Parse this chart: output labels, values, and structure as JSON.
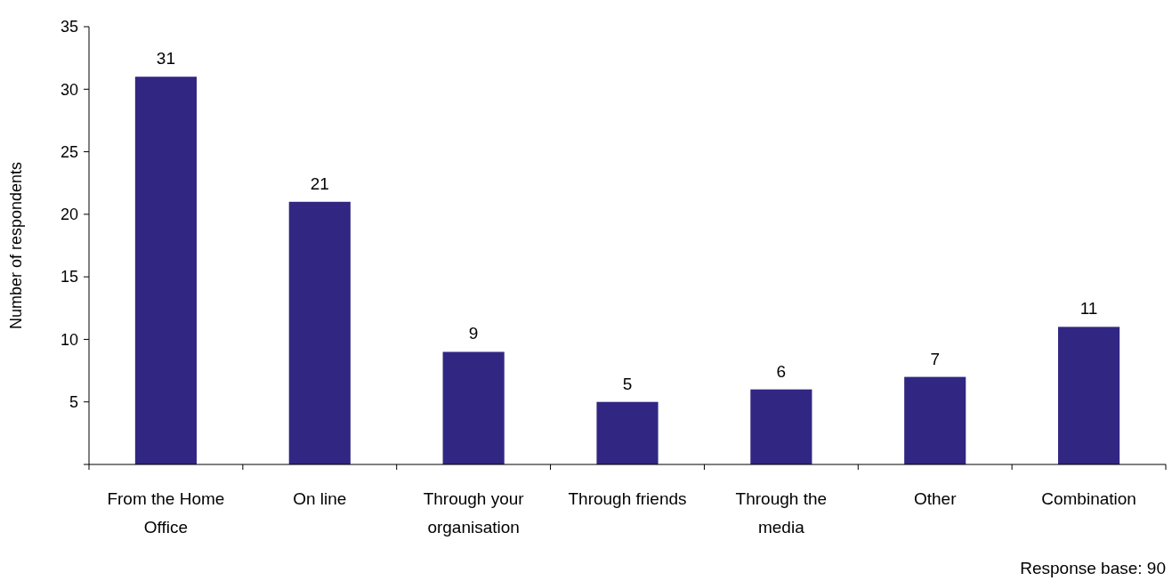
{
  "chart_data": {
    "type": "bar",
    "ylabel": "Number of respondents",
    "categories": [
      "From the Home Office",
      "On line",
      "Through your organisation",
      "Through friends",
      "Through the media",
      "Other",
      "Combination"
    ],
    "values": [
      31,
      21,
      9,
      5,
      6,
      7,
      11
    ],
    "color": "#312783",
    "ylim": [
      0,
      35
    ],
    "yticks": [
      {
        "value": 0,
        "label": null
      },
      5,
      10,
      15,
      20,
      25,
      30,
      35
    ],
    "data_labels": true,
    "grid": false,
    "annotations": [
      "Response base: 90"
    ]
  }
}
